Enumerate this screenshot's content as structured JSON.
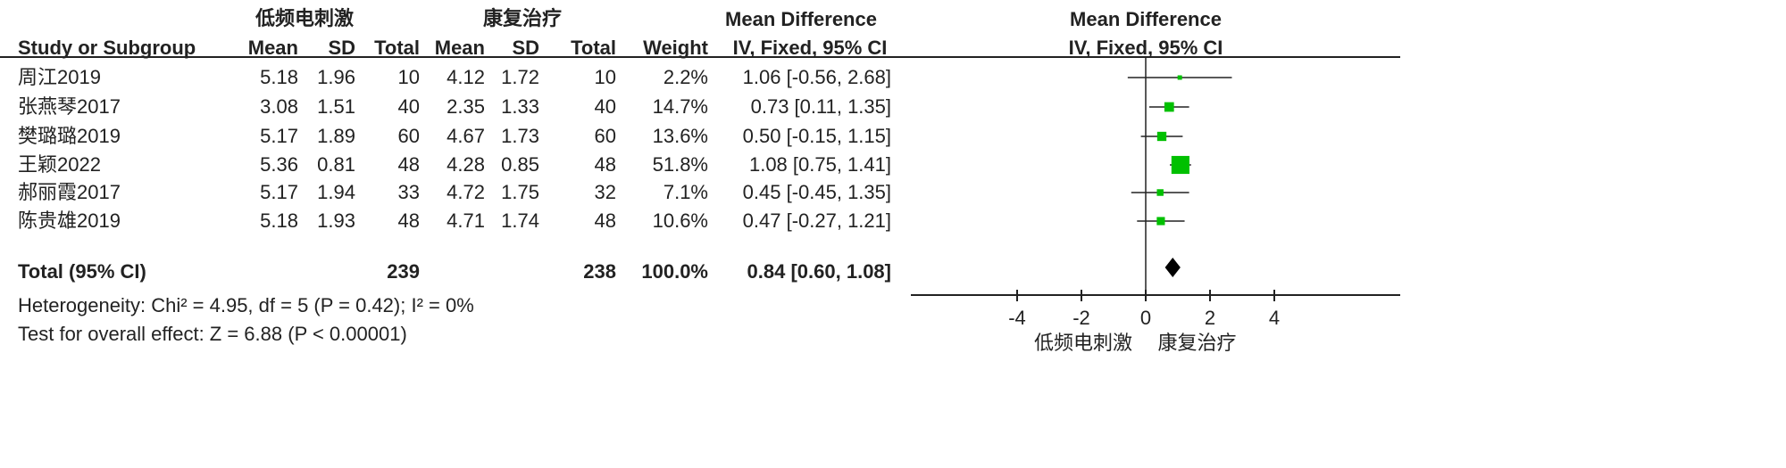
{
  "headers": {
    "group_experimental": "低频电刺激",
    "group_control": "康复治疗",
    "study": "Study or Subgroup",
    "mean": "Mean",
    "sd": "SD",
    "total": "Total",
    "weight": "Weight",
    "md_title": "Mean Difference",
    "md_method": "IV, Fixed, 95% CI",
    "plot_title": "Mean Difference",
    "plot_method": "IV, Fixed, 95% CI"
  },
  "studies": [
    {
      "name": "周江2019",
      "e_mean": "5.18",
      "e_sd": "1.96",
      "e_total": "10",
      "c_mean": "4.12",
      "c_sd": "1.72",
      "c_total": "10",
      "weight": "2.2%",
      "ci_text": "1.06 [-0.56, 2.68]",
      "md": 1.06,
      "lo": -0.56,
      "hi": 2.68,
      "w": 2.2
    },
    {
      "name": "张燕琴2017",
      "e_mean": "3.08",
      "e_sd": "1.51",
      "e_total": "40",
      "c_mean": "2.35",
      "c_sd": "1.33",
      "c_total": "40",
      "weight": "14.7%",
      "ci_text": "0.73 [0.11, 1.35]",
      "md": 0.73,
      "lo": 0.11,
      "hi": 1.35,
      "w": 14.7
    },
    {
      "name": "樊璐璐2019",
      "e_mean": "5.17",
      "e_sd": "1.89",
      "e_total": "60",
      "c_mean": "4.67",
      "c_sd": "1.73",
      "c_total": "60",
      "weight": "13.6%",
      "ci_text": "0.50 [-0.15, 1.15]",
      "md": 0.5,
      "lo": -0.15,
      "hi": 1.15,
      "w": 13.6
    },
    {
      "name": "王颖2022",
      "e_mean": "5.36",
      "e_sd": "0.81",
      "e_total": "48",
      "c_mean": "4.28",
      "c_sd": "0.85",
      "c_total": "48",
      "weight": "51.8%",
      "ci_text": "1.08 [0.75, 1.41]",
      "md": 1.08,
      "lo": 0.75,
      "hi": 1.41,
      "w": 51.8
    },
    {
      "name": "郝丽霞2017",
      "e_mean": "5.17",
      "e_sd": "1.94",
      "e_total": "33",
      "c_mean": "4.72",
      "c_sd": "1.75",
      "c_total": "32",
      "weight": "7.1%",
      "ci_text": "0.45 [-0.45, 1.35]",
      "md": 0.45,
      "lo": -0.45,
      "hi": 1.35,
      "w": 7.1
    },
    {
      "name": "陈贵雄2019",
      "e_mean": "5.18",
      "e_sd": "1.93",
      "e_total": "48",
      "c_mean": "4.71",
      "c_sd": "1.74",
      "c_total": "48",
      "weight": "10.6%",
      "ci_text": "0.47 [-0.27, 1.21]",
      "md": 0.47,
      "lo": -0.27,
      "hi": 1.21,
      "w": 10.6
    }
  ],
  "total": {
    "label": "Total (95% CI)",
    "e_total": "239",
    "c_total": "238",
    "weight": "100.0%",
    "ci_text": "0.84 [0.60, 1.08]",
    "md": 0.84,
    "lo": 0.6,
    "hi": 1.08
  },
  "heterogeneity": "Heterogeneity: Chi² = 4.95, df = 5 (P = 0.42); I² = 0%",
  "overall_effect": "Test for overall effect: Z = 6.88 (P < 0.00001)",
  "chart_data": {
    "type": "forest",
    "xticks": [
      -4,
      -2,
      0,
      2,
      4
    ],
    "tick_labels": [
      "-4",
      "-2",
      "0",
      "2",
      "4"
    ],
    "xlim": [
      -4,
      4
    ],
    "favours_left": "低频电刺激",
    "favours_right": "康复治疗",
    "point_color": "#00c000",
    "diamond_color": "#000000"
  }
}
